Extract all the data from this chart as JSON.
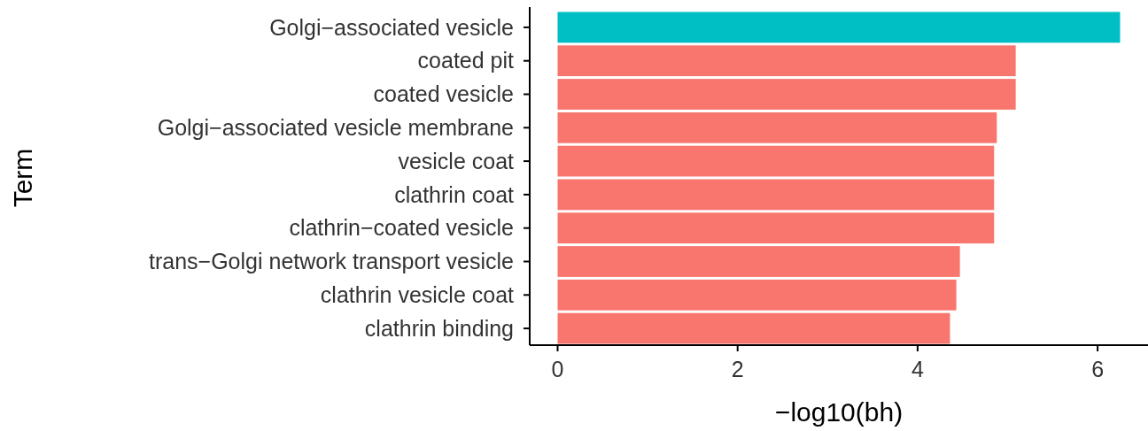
{
  "chart_data": {
    "type": "bar",
    "orientation": "horizontal",
    "xlabel": "−log10(bh)",
    "ylabel": "Term",
    "categories": [
      "Golgi−associated vesicle",
      "coated pit",
      "coated vesicle",
      "Golgi−associated vesicle membrane",
      "vesicle coat",
      "clathrin coat",
      "clathrin−coated vesicle",
      "trans−Golgi network transport vesicle",
      "clathrin vesicle coat",
      "clathrin binding"
    ],
    "values": [
      6.25,
      5.09,
      5.09,
      4.88,
      4.85,
      4.85,
      4.85,
      4.47,
      4.43,
      4.36
    ],
    "colors": [
      "#00bfc4",
      "#f8766d",
      "#f8766d",
      "#f8766d",
      "#f8766d",
      "#f8766d",
      "#f8766d",
      "#f8766d",
      "#f8766d",
      "#f8766d"
    ],
    "xlim": [
      -0.31,
      6.56
    ],
    "xticks": [
      0,
      2,
      4,
      6
    ],
    "grid": false
  }
}
